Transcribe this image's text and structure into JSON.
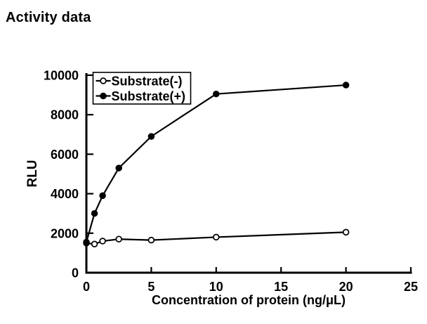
{
  "title": "Activity data",
  "colors": {
    "foreground": "#000000",
    "background": "#ffffff"
  },
  "chart_data": {
    "type": "line",
    "title": "Activity data",
    "xlabel": "Concentration of protein (ng/μL)",
    "ylabel": "RLU",
    "xlim": [
      0,
      25
    ],
    "ylim": [
      0,
      10000
    ],
    "x_ticks": [
      0,
      5,
      10,
      15,
      20,
      25
    ],
    "y_ticks": [
      0,
      2000,
      4000,
      6000,
      8000,
      10000
    ],
    "grid": false,
    "legend_position": "top-left-inside",
    "series": [
      {
        "name": "Substrate(-)",
        "marker": "open-circle",
        "color": "#000000",
        "x": [
          0,
          0.625,
          1.25,
          2.5,
          5,
          10,
          20
        ],
        "values": [
          1500,
          1450,
          1600,
          1700,
          1650,
          1800,
          2050
        ]
      },
      {
        "name": "Substrate(+)",
        "marker": "filled-circle",
        "color": "#000000",
        "x": [
          0,
          0.625,
          1.25,
          2.5,
          5,
          10,
          20
        ],
        "values": [
          1550,
          3000,
          3900,
          5300,
          6900,
          9050,
          9500
        ]
      }
    ]
  }
}
